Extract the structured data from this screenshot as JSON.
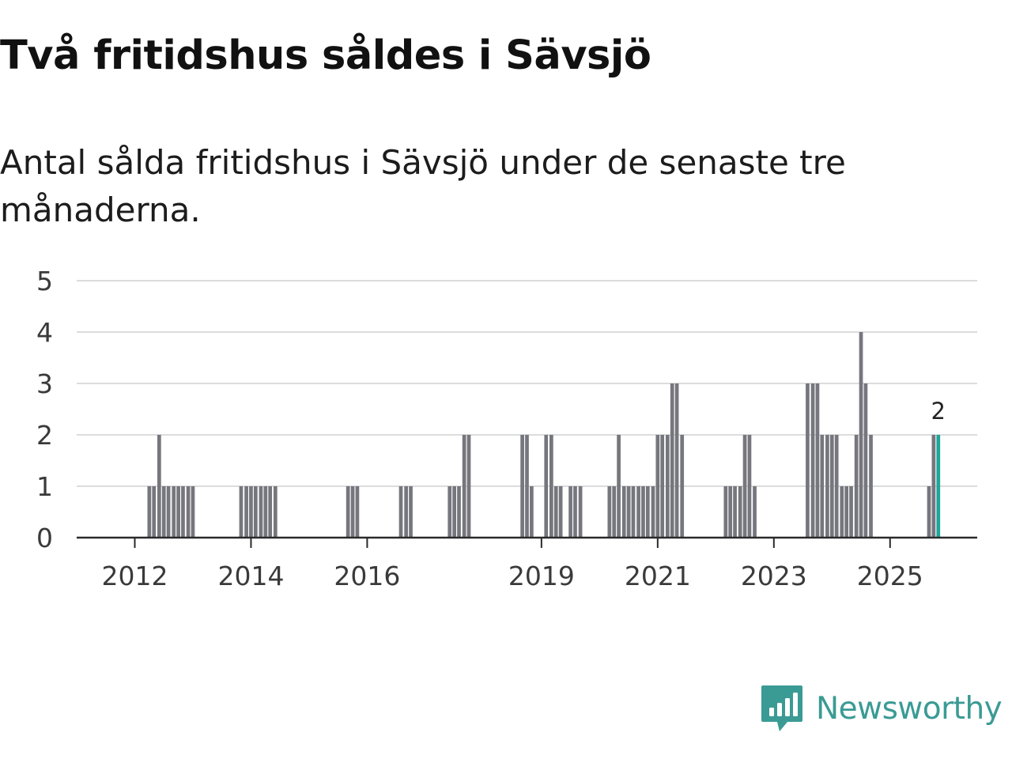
{
  "title": "Två fritidshus såldes i Sävsjö",
  "subtitle": "Antal sålda fritidshus i Sävsjö under de senaste tre månaderna.",
  "brand": {
    "name": "Newsworthy",
    "logo_icon": "bar-chart-speech-bubble-icon",
    "color": "#3a9b94"
  },
  "colors": {
    "bar": "#76767e",
    "highlight": "#20a59a",
    "grid": "#dcdcdc",
    "axis": "#2a2a2a"
  },
  "chart_data": {
    "type": "bar",
    "title": "Två fritidshus såldes i Sävsjö",
    "subtitle": "Antal sålda fritidshus i Sävsjö under de senaste tre månaderna.",
    "xlabel": "",
    "ylabel": "",
    "grid": true,
    "legend": "none",
    "x_start": 2011,
    "x_end": 2026,
    "xlim": [
      2011.0,
      2026.5
    ],
    "ylim": [
      0,
      5
    ],
    "y_ticks": [
      0,
      1,
      2,
      3,
      4,
      5
    ],
    "x_ticks": [
      {
        "label": "2012",
        "x": 2012.0
      },
      {
        "label": "2014",
        "x": 2014.0
      },
      {
        "label": "2016",
        "x": 2016.0
      },
      {
        "label": "2019",
        "x": 2019.0
      },
      {
        "label": "2021",
        "x": 2021.0
      },
      {
        "label": "2023",
        "x": 2023.0
      },
      {
        "label": "2025",
        "x": 2025.0
      }
    ],
    "highlight": {
      "x": 2025.83,
      "value": 2,
      "label": "2"
    },
    "x": [
      2012.25,
      2012.33,
      2012.42,
      2012.5,
      2012.58,
      2012.67,
      2012.75,
      2012.83,
      2012.92,
      2013.0,
      2013.83,
      2013.92,
      2014.0,
      2014.08,
      2014.17,
      2014.25,
      2014.33,
      2014.42,
      2015.67,
      2015.75,
      2015.83,
      2016.58,
      2016.67,
      2016.75,
      2017.42,
      2017.5,
      2017.58,
      2017.67,
      2017.75,
      2018.67,
      2018.75,
      2018.83,
      2019.08,
      2019.17,
      2019.25,
      2019.33,
      2019.5,
      2019.58,
      2019.67,
      2020.17,
      2020.25,
      2020.33,
      2020.42,
      2020.5,
      2020.58,
      2020.67,
      2020.75,
      2020.83,
      2020.92,
      2021.0,
      2021.08,
      2021.17,
      2021.25,
      2021.33,
      2021.42,
      2022.17,
      2022.25,
      2022.33,
      2022.42,
      2022.5,
      2022.58,
      2022.67,
      2023.58,
      2023.67,
      2023.75,
      2023.83,
      2023.92,
      2024.0,
      2024.08,
      2024.17,
      2024.25,
      2024.33,
      2024.42,
      2024.5,
      2024.58,
      2024.67,
      2025.67,
      2025.75,
      2025.83
    ],
    "values": [
      1,
      1,
      2,
      1,
      1,
      1,
      1,
      1,
      1,
      1,
      1,
      1,
      1,
      1,
      1,
      1,
      1,
      1,
      1,
      1,
      1,
      1,
      1,
      1,
      1,
      1,
      1,
      2,
      2,
      2,
      2,
      1,
      2,
      2,
      1,
      1,
      1,
      1,
      1,
      1,
      1,
      2,
      1,
      1,
      1,
      1,
      1,
      1,
      1,
      2,
      2,
      2,
      3,
      3,
      2,
      1,
      1,
      1,
      1,
      2,
      2,
      1,
      3,
      3,
      3,
      2,
      2,
      2,
      2,
      1,
      1,
      1,
      2,
      4,
      3,
      2,
      1,
      2,
      2
    ]
  }
}
